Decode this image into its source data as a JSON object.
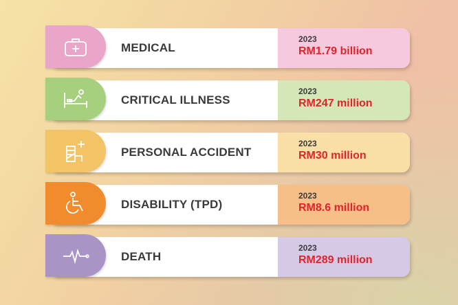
{
  "items": [
    {
      "label": "MEDICAL",
      "year": "2023",
      "amount": "RM1.79 billion",
      "icon": "medical-kit-icon",
      "tab_color": "#eaa6c8",
      "value_color": "#f7c9df"
    },
    {
      "label": "CRITICAL ILLNESS",
      "year": "2023",
      "amount": "RM247 million",
      "icon": "hospital-bed-icon",
      "tab_color": "#a6cf7e",
      "value_color": "#d4e7b6"
    },
    {
      "label": "PERSONAL ACCIDENT",
      "year": "2023",
      "amount": "RM30 million",
      "icon": "injury-bandage-icon",
      "tab_color": "#f3c465",
      "value_color": "#fae0a7"
    },
    {
      "label": "DISABILITY (TPD)",
      "year": "2023",
      "amount": "RM8.6 million",
      "icon": "wheelchair-icon",
      "tab_color": "#f08c2d",
      "value_color": "#f7bf88"
    },
    {
      "label": "DEATH",
      "year": "2023",
      "amount": "RM289 million",
      "icon": "flatline-icon",
      "tab_color": "#a895c6",
      "value_color": "#d6c9e6"
    }
  ]
}
